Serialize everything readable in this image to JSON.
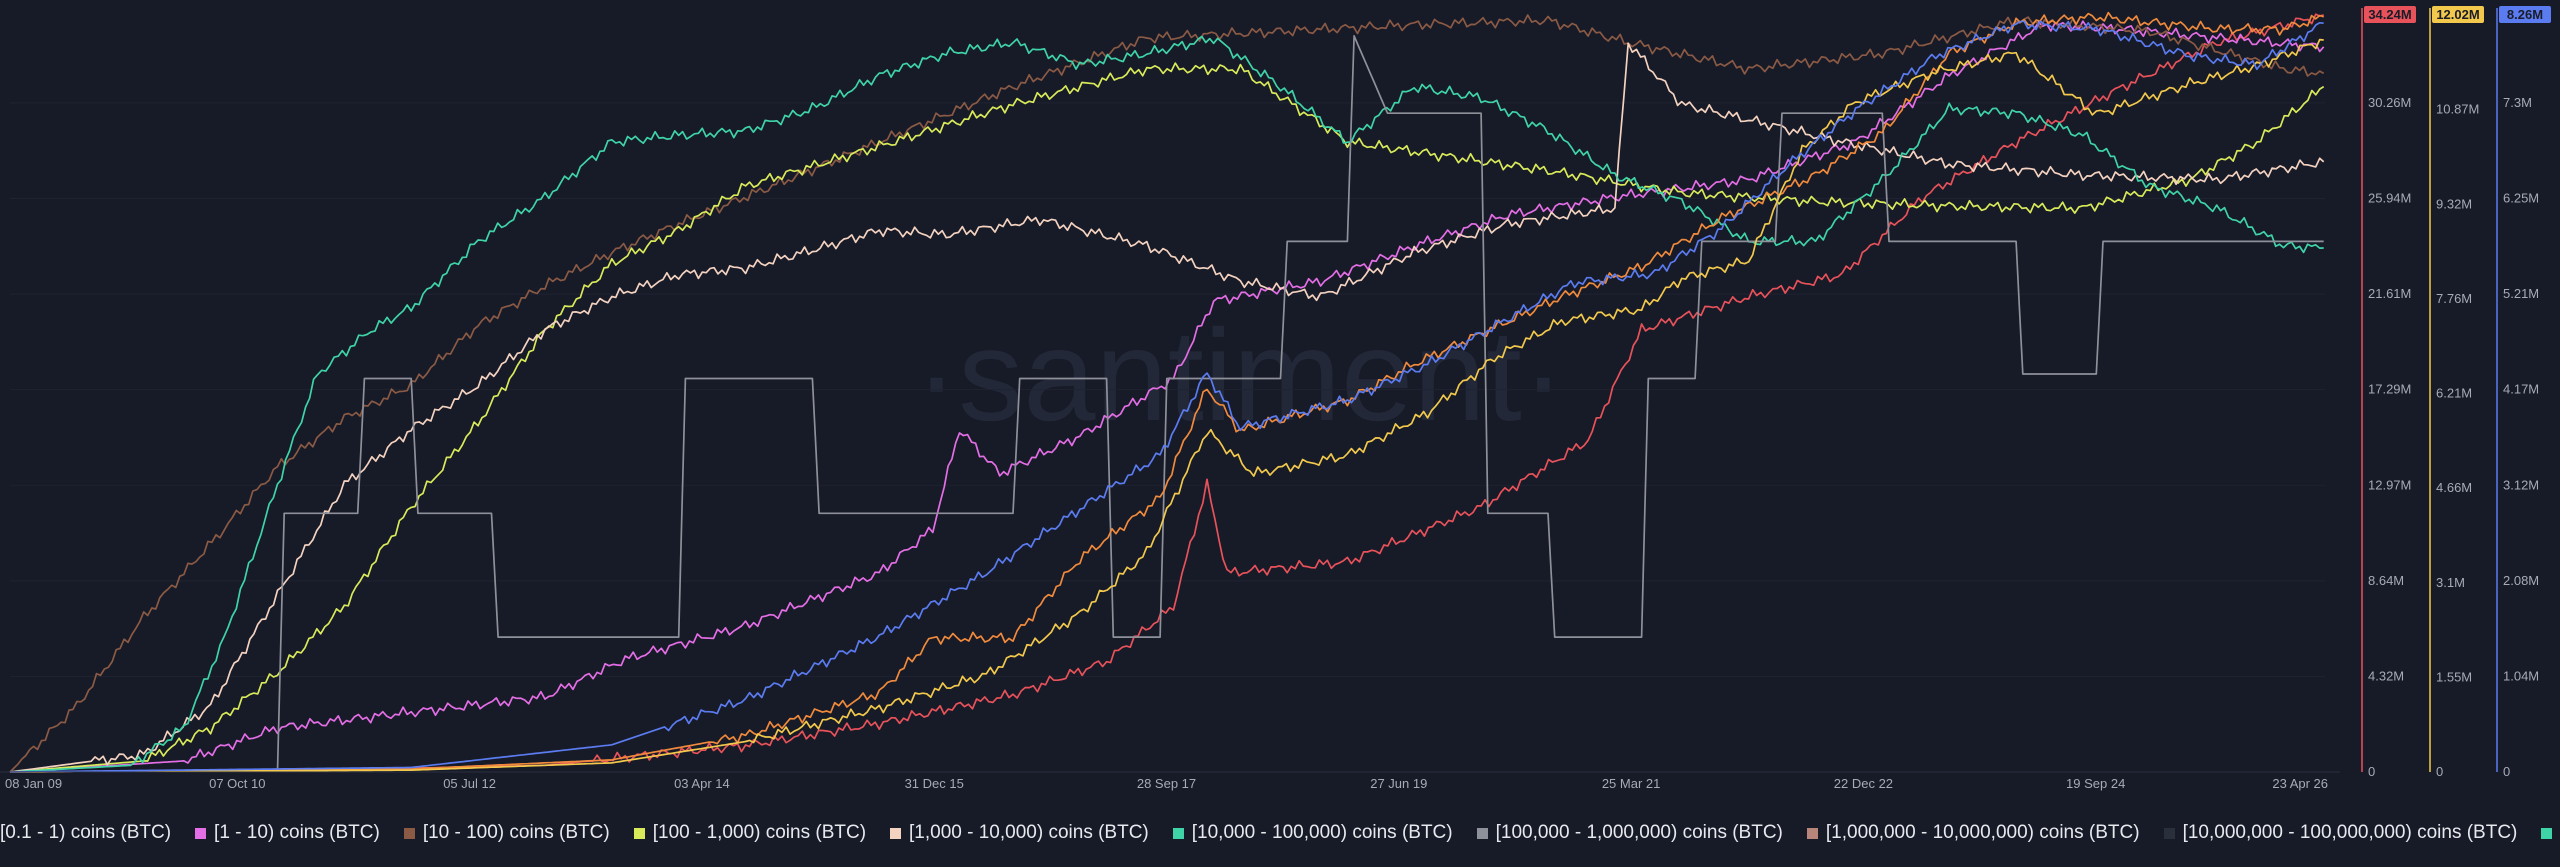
{
  "chart_data": {
    "type": "line",
    "watermark": "·santiment·",
    "x_ticks": [
      "08 Jan 09",
      "07 Oct 10",
      "05 Jul 12",
      "03 Apr 14",
      "31 Dec 15",
      "28 Sep 17",
      "27 Jun 19",
      "25 Mar 21",
      "22 Dec 22",
      "19 Sep 24",
      "23 Apr 26"
    ],
    "x_range": [
      "2009-01",
      "2026-04"
    ],
    "axes": [
      {
        "name": "red-axis",
        "color": "#e8525a",
        "ticks": [
          "0",
          "4.32M",
          "8.64M",
          "12.97M",
          "17.29M",
          "21.61M",
          "25.94M",
          "30.26M"
        ],
        "badge": "34.24M",
        "max": 34.24
      },
      {
        "name": "yellow-axis",
        "color": "#f2c94c",
        "ticks": [
          "0",
          "1.55M",
          "3.1M",
          "4.66M",
          "6.21M",
          "7.76M",
          "9.32M",
          "10.87M",
          "12.43M"
        ],
        "badge": "12.02M",
        "max": 12.43
      },
      {
        "name": "blue-axis",
        "color": "#5b7cf0",
        "ticks": [
          "0",
          "1.04M",
          "2.08M",
          "3.12M",
          "4.17M",
          "5.21M",
          "6.25M",
          "7.3M"
        ],
        "badge": "8.26M",
        "max": 8.35
      }
    ],
    "series": [
      {
        "name": "[0.1 - 1) coins (BTC)",
        "color": "#e8525a",
        "axis": "red-axis",
        "points": [
          [
            2009,
            0
          ],
          [
            2011,
            0.05
          ],
          [
            2013,
            0.3
          ],
          [
            2014.5,
            1.2
          ],
          [
            2015.5,
            2.2
          ],
          [
            2016.5,
            3.5
          ],
          [
            2017.2,
            5
          ],
          [
            2017.7,
            7.5
          ],
          [
            2017.95,
            13
          ],
          [
            2018.1,
            9
          ],
          [
            2019,
            9.5
          ],
          [
            2020,
            12
          ],
          [
            2020.8,
            15
          ],
          [
            2021.2,
            20
          ],
          [
            2022,
            21.5
          ],
          [
            2022.7,
            22.5
          ],
          [
            2023.3,
            26
          ],
          [
            2024,
            28.5
          ],
          [
            2024.8,
            31
          ],
          [
            2025.5,
            33
          ],
          [
            2026.3,
            34.24
          ]
        ]
      },
      {
        "name": "[1 - 10) coins (BTC)",
        "color": "#e46ee6",
        "axis": "red-axis",
        "points": [
          [
            2009,
            0
          ],
          [
            2010.3,
            0.5
          ],
          [
            2011,
            2
          ],
          [
            2012,
            2.7
          ],
          [
            2013,
            3.4
          ],
          [
            2013.6,
            5.1
          ],
          [
            2014.5,
            6.6
          ],
          [
            2015.5,
            9
          ],
          [
            2015.9,
            11
          ],
          [
            2016.1,
            15.5
          ],
          [
            2016.4,
            13.5
          ],
          [
            2017,
            15.2
          ],
          [
            2017.7,
            17.8
          ],
          [
            2018,
            21.3
          ],
          [
            2018.8,
            22.2
          ],
          [
            2019.6,
            24
          ],
          [
            2020.2,
            25.2
          ],
          [
            2021,
            26
          ],
          [
            2022,
            26.8
          ],
          [
            2022.8,
            28.5
          ],
          [
            2023.5,
            31.5
          ],
          [
            2024.2,
            33.8
          ],
          [
            2024.8,
            33.6
          ],
          [
            2025.5,
            33.2
          ],
          [
            2026.3,
            32.8
          ]
        ]
      },
      {
        "name": "[10 - 100) coins (BTC)",
        "color": "#8a5a45",
        "axis": "red-axis",
        "points": [
          [
            2009,
            0
          ],
          [
            2009.5,
            3
          ],
          [
            2010,
            7
          ],
          [
            2010.6,
            11
          ],
          [
            2011,
            13.8
          ],
          [
            2011.5,
            16
          ],
          [
            2012,
            17.5
          ],
          [
            2012.5,
            20.2
          ],
          [
            2013,
            22
          ],
          [
            2013.5,
            23.5
          ],
          [
            2014,
            24.8
          ],
          [
            2014.7,
            26.5
          ],
          [
            2015.5,
            28.5
          ],
          [
            2016.5,
            31
          ],
          [
            2017.5,
            33.2
          ],
          [
            2018.5,
            33.5
          ],
          [
            2019.5,
            33.8
          ],
          [
            2020.5,
            34
          ],
          [
            2021.1,
            33
          ],
          [
            2022,
            31.8
          ],
          [
            2023,
            32.5
          ],
          [
            2024,
            34
          ],
          [
            2025,
            33.5
          ],
          [
            2026,
            31.8
          ],
          [
            2026.3,
            31.6
          ]
        ]
      },
      {
        "name": "[100 - 1,000) coins (BTC)",
        "color": "#d8ea5a",
        "axis": "red-axis",
        "points": [
          [
            2009,
            0
          ],
          [
            2010,
            0.5
          ],
          [
            2010.5,
            2
          ],
          [
            2011,
            4.5
          ],
          [
            2011.5,
            7.5
          ],
          [
            2012,
            12
          ],
          [
            2012.5,
            15.8
          ],
          [
            2013,
            20
          ],
          [
            2013.5,
            23
          ],
          [
            2014,
            24.5
          ],
          [
            2014.5,
            26.5
          ],
          [
            2015.5,
            28.3
          ],
          [
            2016.5,
            30.2
          ],
          [
            2017.5,
            31.8
          ],
          [
            2018.2,
            31.8
          ],
          [
            2019,
            28.5
          ],
          [
            2019.8,
            27.8
          ],
          [
            2020.5,
            27.2
          ],
          [
            2021.5,
            26.2
          ],
          [
            2022.5,
            25.8
          ],
          [
            2023.5,
            25.6
          ],
          [
            2024.5,
            25.5
          ],
          [
            2025.3,
            26.8
          ],
          [
            2025.8,
            28.5
          ],
          [
            2026.3,
            31
          ]
        ]
      },
      {
        "name": "[1,000 - 10,000) coins (BTC)",
        "color": "#f4d2c0",
        "axis": "red-axis",
        "points": [
          [
            2009,
            0
          ],
          [
            2010,
            0.8
          ],
          [
            2010.5,
            3
          ],
          [
            2011,
            8
          ],
          [
            2011.5,
            13
          ],
          [
            2012,
            15.5
          ],
          [
            2012.5,
            17.5
          ],
          [
            2013,
            20
          ],
          [
            2013.5,
            21.5
          ],
          [
            2014,
            22.5
          ],
          [
            2014.5,
            22.8
          ],
          [
            2015,
            23.6
          ],
          [
            2015.5,
            24.5
          ],
          [
            2016,
            24.3
          ],
          [
            2016.7,
            25
          ],
          [
            2017.5,
            23.8
          ],
          [
            2018.2,
            22.2
          ],
          [
            2018.8,
            21.5
          ],
          [
            2019.5,
            23.5
          ],
          [
            2020.2,
            24.8
          ],
          [
            2021,
            25.5
          ],
          [
            2021.1,
            33
          ],
          [
            2021.5,
            30.2
          ],
          [
            2022,
            29.5
          ],
          [
            2022.7,
            28.5
          ],
          [
            2023.5,
            27.5
          ],
          [
            2024.5,
            27
          ],
          [
            2025.5,
            26.8
          ],
          [
            2026.3,
            27.6
          ]
        ]
      },
      {
        "name": "[10,000 - 100,000) coins (BTC)",
        "color": "#3fd4a8",
        "axis": "red-axis",
        "points": [
          [
            2009,
            0
          ],
          [
            2009.9,
            0.3
          ],
          [
            2010.3,
            2
          ],
          [
            2010.6,
            6
          ],
          [
            2011,
            13
          ],
          [
            2011.3,
            18
          ],
          [
            2011.7,
            20
          ],
          [
            2012,
            21
          ],
          [
            2012.5,
            24
          ],
          [
            2013,
            26
          ],
          [
            2013.5,
            28.5
          ],
          [
            2014,
            28.8
          ],
          [
            2014.5,
            29
          ],
          [
            2015,
            30
          ],
          [
            2015.5,
            31.5
          ],
          [
            2016,
            32.5
          ],
          [
            2016.5,
            33
          ],
          [
            2017,
            32
          ],
          [
            2017.5,
            32.5
          ],
          [
            2018,
            33.2
          ],
          [
            2018.5,
            31
          ],
          [
            2019,
            28.5
          ],
          [
            2019.5,
            31
          ],
          [
            2020,
            30.5
          ],
          [
            2020.5,
            29
          ],
          [
            2021,
            27
          ],
          [
            2021.5,
            25.8
          ],
          [
            2022,
            24
          ],
          [
            2022.5,
            24
          ],
          [
            2023,
            26.8
          ],
          [
            2023.5,
            30
          ],
          [
            2024,
            29.8
          ],
          [
            2024.5,
            28.8
          ],
          [
            2025,
            26.5
          ],
          [
            2025.5,
            25.5
          ],
          [
            2026,
            23.8
          ],
          [
            2026.3,
            23.7
          ]
        ]
      },
      {
        "name": "[100,000  - 1,000,000) coins (BTC)",
        "color": "#8e9199",
        "axis": "red-axis",
        "points": [
          [
            2009,
            0
          ],
          [
            2011,
            0.05
          ],
          [
            2011.05,
            11.7
          ],
          [
            2011.6,
            11.7
          ],
          [
            2011.65,
            17.8
          ],
          [
            2012,
            17.8
          ],
          [
            2012.05,
            11.7
          ],
          [
            2012.6,
            11.7
          ],
          [
            2012.65,
            6.1
          ],
          [
            2014,
            6.1
          ],
          [
            2014.05,
            17.8
          ],
          [
            2015,
            17.8
          ],
          [
            2015.05,
            11.7
          ],
          [
            2016.5,
            11.7
          ],
          [
            2016.55,
            17.8
          ],
          [
            2017.2,
            17.8
          ],
          [
            2017.25,
            6.1
          ],
          [
            2017.6,
            6.1
          ],
          [
            2017.65,
            17.8
          ],
          [
            2018.5,
            17.8
          ],
          [
            2018.55,
            24
          ],
          [
            2019,
            24
          ],
          [
            2019.05,
            33.3
          ],
          [
            2019.3,
            29.8
          ],
          [
            2020,
            29.8
          ],
          [
            2020.05,
            11.7
          ],
          [
            2020.5,
            11.7
          ],
          [
            2020.55,
            6.1
          ],
          [
            2021.2,
            6.1
          ],
          [
            2021.25,
            17.8
          ],
          [
            2021.6,
            17.8
          ],
          [
            2021.65,
            24
          ],
          [
            2022.2,
            24
          ],
          [
            2022.25,
            29.8
          ],
          [
            2023,
            29.8
          ],
          [
            2023.05,
            24
          ],
          [
            2024,
            24
          ],
          [
            2024.05,
            18
          ],
          [
            2024.6,
            18
          ],
          [
            2024.65,
            24
          ],
          [
            2026.3,
            24
          ]
        ]
      },
      {
        "name": "[1,000,000 - 10,000,000) coins (BTC)",
        "color": "#b8857a",
        "axis": "red-axis",
        "points": []
      },
      {
        "name": "[10,000,000 - 100,000,000) coins (BTC)",
        "color": "#2a2f3c",
        "axis": "red-axis",
        "points": []
      },
      {
        "name": "orange-series",
        "color": "#f08a3c",
        "axis": "yellow-axis",
        "points": [
          [
            2009,
            0
          ],
          [
            2012,
            0.05
          ],
          [
            2013.5,
            0.2
          ],
          [
            2014.5,
            0.6
          ],
          [
            2015.5,
            1.3
          ],
          [
            2015.9,
            2.2
          ],
          [
            2016.5,
            2.2
          ],
          [
            2017,
            3.5
          ],
          [
            2017.6,
            4.5
          ],
          [
            2017.95,
            6.3
          ],
          [
            2018.2,
            5.6
          ],
          [
            2019,
            6.1
          ],
          [
            2019.5,
            6.7
          ],
          [
            2020.1,
            7.3
          ],
          [
            2020.6,
            7.8
          ],
          [
            2021.2,
            8.3
          ],
          [
            2021.8,
            9.1
          ],
          [
            2022.5,
            9.8
          ],
          [
            2023,
            10.5
          ],
          [
            2023.5,
            11.8
          ],
          [
            2024,
            12.3
          ],
          [
            2024.6,
            12.4
          ],
          [
            2025.5,
            12.2
          ],
          [
            2026,
            12.2
          ],
          [
            2026.3,
            12.4
          ]
        ]
      },
      {
        "name": "yellow-series",
        "color": "#f2c94c",
        "axis": "yellow-axis",
        "points": [
          [
            2009,
            0
          ],
          [
            2012,
            0.03
          ],
          [
            2013.5,
            0.15
          ],
          [
            2014.5,
            0.5
          ],
          [
            2015.5,
            1.05
          ],
          [
            2016.3,
            1.6
          ],
          [
            2017,
            2.6
          ],
          [
            2017.5,
            3.6
          ],
          [
            2017.95,
            5.6
          ],
          [
            2018.3,
            4.9
          ],
          [
            2019,
            5.2
          ],
          [
            2019.6,
            5.9
          ],
          [
            2020.1,
            6.8
          ],
          [
            2020.6,
            7.4
          ],
          [
            2021.2,
            7.6
          ],
          [
            2021.5,
            8.1
          ],
          [
            2022,
            8.4
          ],
          [
            2022.4,
            10.2
          ],
          [
            2022.8,
            11
          ],
          [
            2023.4,
            11.5
          ],
          [
            2024,
            11.8
          ],
          [
            2024.6,
            10.8
          ],
          [
            2025.3,
            11.3
          ],
          [
            2025.8,
            11.6
          ],
          [
            2026.3,
            12.02
          ]
        ]
      },
      {
        "name": "blue-series",
        "color": "#5b7cf0",
        "axis": "blue-axis",
        "points": [
          [
            2009,
            0
          ],
          [
            2012,
            0.05
          ],
          [
            2013.5,
            0.3
          ],
          [
            2014.5,
            0.8
          ],
          [
            2015.5,
            1.5
          ],
          [
            2016.3,
            2.2
          ],
          [
            2017,
            2.9
          ],
          [
            2017.6,
            3.5
          ],
          [
            2017.95,
            4.4
          ],
          [
            2018.2,
            3.8
          ],
          [
            2019,
            4.1
          ],
          [
            2019.6,
            4.5
          ],
          [
            2020.2,
            5
          ],
          [
            2020.7,
            5.4
          ],
          [
            2021.3,
            5.5
          ],
          [
            2021.8,
            6
          ],
          [
            2022.3,
            6.7
          ],
          [
            2022.8,
            7.3
          ],
          [
            2023.4,
            7.9
          ],
          [
            2024,
            8.25
          ],
          [
            2024.6,
            8.2
          ],
          [
            2025.3,
            7.9
          ],
          [
            2025.8,
            7.8
          ],
          [
            2026.3,
            8.26
          ]
        ]
      }
    ]
  }
}
